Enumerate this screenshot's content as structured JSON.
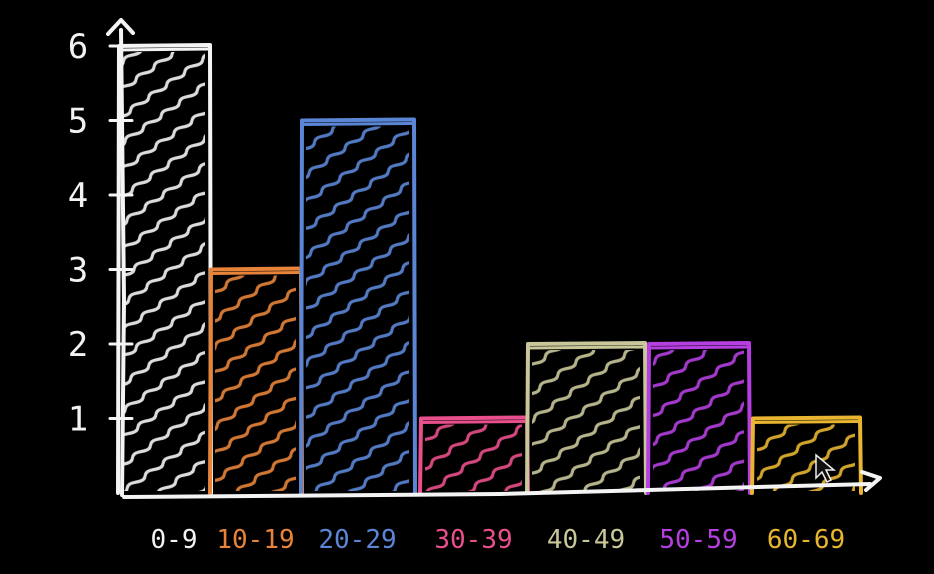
{
  "chart_data": {
    "type": "bar",
    "title": "",
    "xlabel": "",
    "ylabel": "",
    "ylim": [
      0,
      6
    ],
    "yticks": [
      "1",
      "2",
      "3",
      "4",
      "5",
      "6"
    ],
    "categories": [
      "0-9",
      "10-19",
      "20-29",
      "30-39",
      "40-49",
      "50-59",
      "60-69"
    ],
    "values": [
      6,
      3,
      5,
      1,
      2,
      2,
      1
    ],
    "bar_colors": [
      "#f4f4f4",
      "#e8843a",
      "#5b86d6",
      "#e84f8c",
      "#c9c79a",
      "#b53fe0",
      "#e7b52f"
    ],
    "grid": false,
    "legend": "none"
  },
  "axis_color": "#f4f4f4",
  "background": "#000000"
}
